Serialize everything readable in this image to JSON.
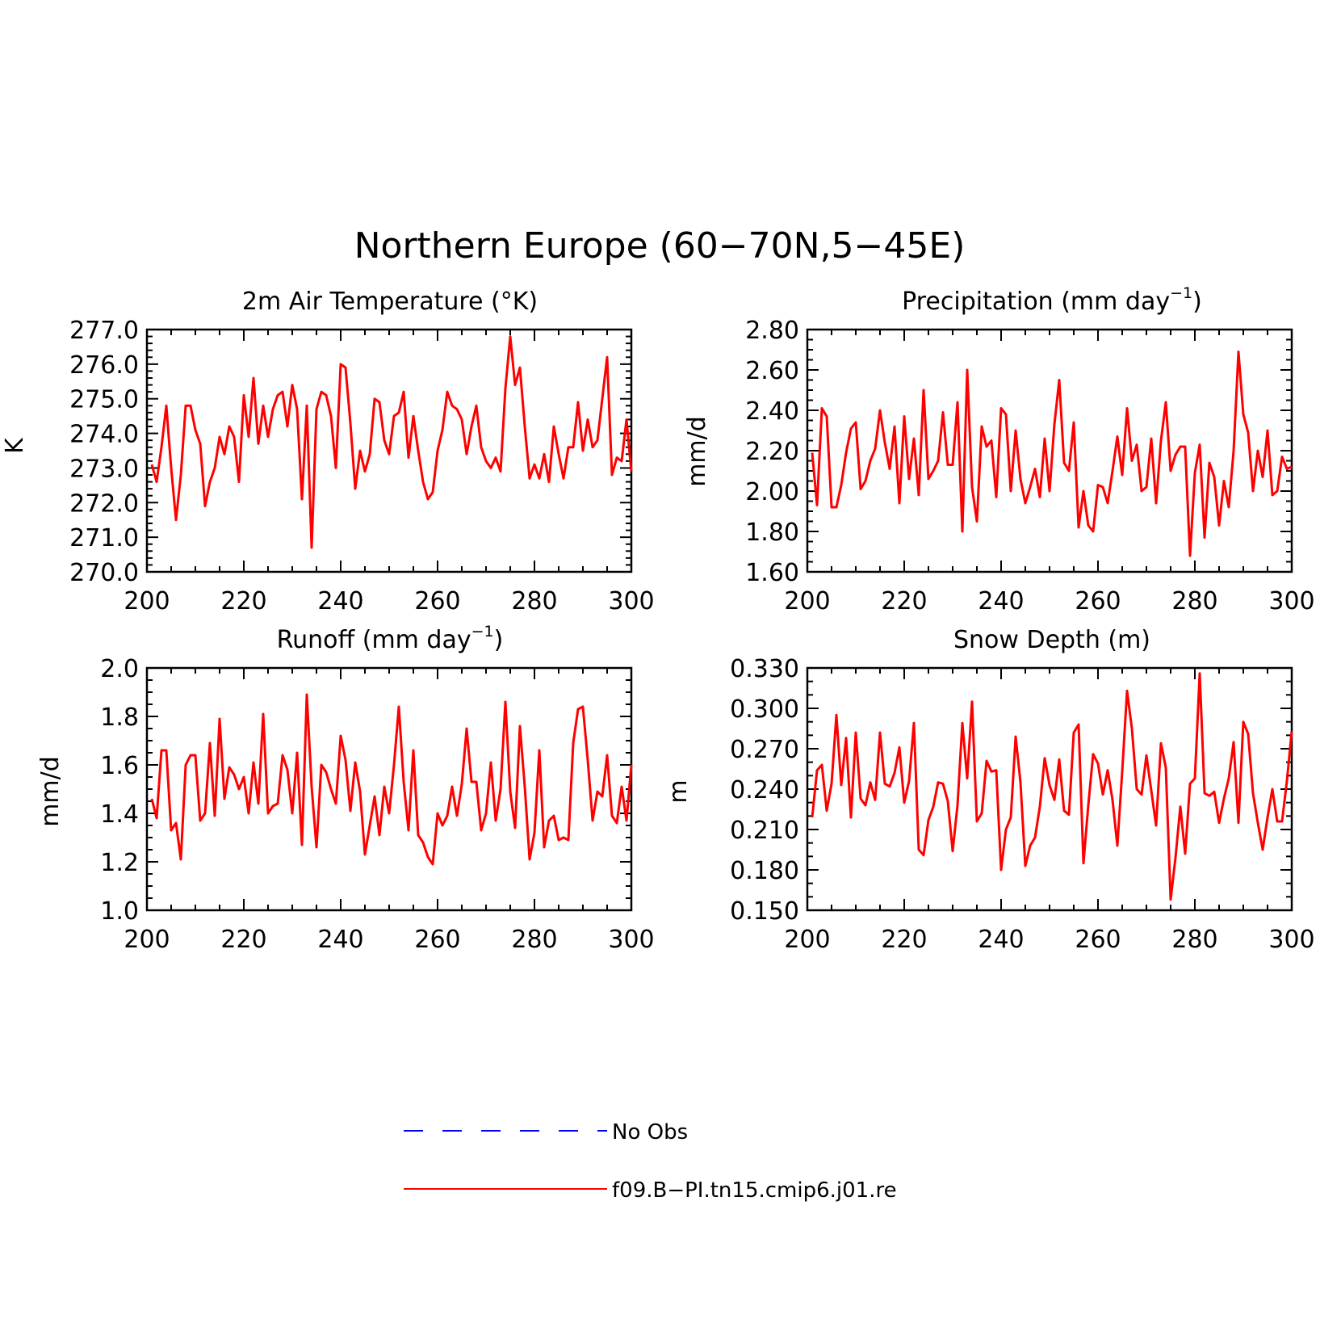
{
  "figure": {
    "title": "Northern Europe (60−70N,5−45E)",
    "colors": {
      "obs": "#0000ff",
      "model": "#ff0000",
      "axis": "#000000"
    }
  },
  "legend": {
    "items": [
      {
        "label": "No Obs",
        "style": "dashed",
        "color": "#0000ff"
      },
      {
        "label": "f09.B−PI.tn15.cmip6.j01.re",
        "style": "solid",
        "color": "#ff0000"
      }
    ]
  },
  "chart_data": [
    {
      "type": "line",
      "title": "2m Air Temperature (°K)",
      "title_sup": "",
      "ylabel": "K",
      "xlim": [
        200,
        300
      ],
      "ylim": [
        270,
        277
      ],
      "xticks": [
        200,
        220,
        240,
        260,
        280,
        300
      ],
      "xtick_labels": [
        "200",
        "220",
        "240",
        "260",
        "280",
        "300"
      ],
      "yticks": [
        270,
        271,
        272,
        273,
        274,
        275,
        276,
        277
      ],
      "ytick_labels": [
        "270.0",
        "271.0",
        "272.0",
        "273.0",
        "274.0",
        "275.0",
        "276.0",
        "277.0"
      ],
      "yminor": 4,
      "x": [
        201,
        202,
        203,
        204,
        205,
        206,
        207,
        208,
        209,
        210,
        211,
        212,
        213,
        214,
        215,
        216,
        217,
        218,
        219,
        220,
        221,
        222,
        223,
        224,
        225,
        226,
        227,
        228,
        229,
        230,
        231,
        232,
        233,
        234,
        235,
        236,
        237,
        238,
        239,
        240,
        241,
        242,
        243,
        244,
        245,
        246,
        247,
        248,
        249,
        250,
        251,
        252,
        253,
        254,
        255,
        256,
        257,
        258,
        259,
        260,
        261,
        262,
        263,
        264,
        265,
        266,
        267,
        268,
        269,
        270,
        271,
        272,
        273,
        274,
        275,
        276,
        277,
        278,
        279,
        280,
        281,
        282,
        283,
        284,
        285,
        286,
        287,
        288,
        289,
        290,
        291,
        292,
        293,
        294,
        295,
        296,
        297,
        298,
        299,
        300
      ],
      "series": [
        {
          "values": [
            273.1,
            272.6,
            273.6,
            274.8,
            273.0,
            271.5,
            272.8,
            274.8,
            274.8,
            274.1,
            273.7,
            271.9,
            272.6,
            273.0,
            273.9,
            273.4,
            274.2,
            273.9,
            272.6,
            275.1,
            273.9,
            275.6,
            273.7,
            274.8,
            273.9,
            274.7,
            275.1,
            275.2,
            274.2,
            275.4,
            274.7,
            272.1,
            274.8,
            270.7,
            274.7,
            275.2,
            275.1,
            274.5,
            273.0,
            276.0,
            275.9,
            274.3,
            272.4,
            273.5,
            272.9,
            273.4,
            275.0,
            274.9,
            273.8,
            273.4,
            274.5,
            274.6,
            275.2,
            273.3,
            274.5,
            273.5,
            272.6,
            272.1,
            272.3,
            273.5,
            274.1,
            275.2,
            274.8,
            274.7,
            274.4,
            273.4,
            274.2,
            274.8,
            273.6,
            273.2,
            273.0,
            273.3,
            272.9,
            275.3,
            276.8,
            275.4,
            275.9,
            274.2,
            272.7,
            273.1,
            272.7,
            273.4,
            272.6,
            274.2,
            273.4,
            272.7,
            273.6,
            273.6,
            274.9,
            273.5,
            274.4,
            273.6,
            273.8,
            275.0,
            276.2,
            272.8,
            273.3,
            273.2,
            274.4,
            272.9
          ]
        }
      ]
    },
    {
      "type": "line",
      "title": "Precipitation (mm day",
      "title_sup": "−1",
      "title_tail": ")",
      "ylabel": "mm/d",
      "xlim": [
        200,
        300
      ],
      "ylim": [
        1.6,
        2.8
      ],
      "xticks": [
        200,
        220,
        240,
        260,
        280,
        300
      ],
      "xtick_labels": [
        "200",
        "220",
        "240",
        "260",
        "280",
        "300"
      ],
      "yticks": [
        1.6,
        1.8,
        2.0,
        2.2,
        2.4,
        2.6,
        2.8
      ],
      "ytick_labels": [
        "1.60",
        "1.80",
        "2.00",
        "2.20",
        "2.40",
        "2.60",
        "2.80"
      ],
      "yminor": 3,
      "x": [
        201,
        202,
        203,
        204,
        205,
        206,
        207,
        208,
        209,
        210,
        211,
        212,
        213,
        214,
        215,
        216,
        217,
        218,
        219,
        220,
        221,
        222,
        223,
        224,
        225,
        226,
        227,
        228,
        229,
        230,
        231,
        232,
        233,
        234,
        235,
        236,
        237,
        238,
        239,
        240,
        241,
        242,
        243,
        244,
        245,
        246,
        247,
        248,
        249,
        250,
        251,
        252,
        253,
        254,
        255,
        256,
        257,
        258,
        259,
        260,
        261,
        262,
        263,
        264,
        265,
        266,
        267,
        268,
        269,
        270,
        271,
        272,
        273,
        274,
        275,
        276,
        277,
        278,
        279,
        280,
        281,
        282,
        283,
        284,
        285,
        286,
        287,
        288,
        289,
        290,
        291,
        292,
        293,
        294,
        295,
        296,
        297,
        298,
        299,
        300
      ],
      "series": [
        {
          "values": [
            2.19,
            1.93,
            2.41,
            2.37,
            1.92,
            1.92,
            2.03,
            2.19,
            2.31,
            2.34,
            2.01,
            2.05,
            2.15,
            2.21,
            2.4,
            2.24,
            2.11,
            2.32,
            1.94,
            2.37,
            2.06,
            2.26,
            1.98,
            2.5,
            2.06,
            2.1,
            2.15,
            2.39,
            2.13,
            2.13,
            2.44,
            1.8,
            2.6,
            2.02,
            1.85,
            2.32,
            2.22,
            2.25,
            1.97,
            2.41,
            2.38,
            2.0,
            2.3,
            2.06,
            1.94,
            2.02,
            2.11,
            1.97,
            2.26,
            2.0,
            2.33,
            2.55,
            2.14,
            2.1,
            2.34,
            1.82,
            2.0,
            1.83,
            1.8,
            2.03,
            2.02,
            1.94,
            2.1,
            2.27,
            2.08,
            2.41,
            2.15,
            2.23,
            2.0,
            2.02,
            2.26,
            1.94,
            2.25,
            2.44,
            2.1,
            2.18,
            2.22,
            2.22,
            1.68,
            2.09,
            2.23,
            1.77,
            2.14,
            2.07,
            1.83,
            2.05,
            1.92,
            2.2,
            2.69,
            2.38,
            2.29,
            2.0,
            2.2,
            2.07,
            2.3,
            1.98,
            2.0,
            2.17,
            2.11,
            2.12
          ]
        }
      ]
    },
    {
      "type": "line",
      "title": "Runoff (mm day",
      "title_sup": "−1",
      "title_tail": ")",
      "ylabel": "mm/d",
      "xlim": [
        200,
        300
      ],
      "ylim": [
        1.0,
        2.0
      ],
      "xticks": [
        200,
        220,
        240,
        260,
        280,
        300
      ],
      "xtick_labels": [
        "200",
        "220",
        "240",
        "260",
        "280",
        "300"
      ],
      "yticks": [
        1.0,
        1.2,
        1.4,
        1.6,
        1.8,
        2.0
      ],
      "ytick_labels": [
        "1.0",
        "1.2",
        "1.4",
        "1.6",
        "1.8",
        "2.0"
      ],
      "yminor": 3,
      "x": [
        201,
        202,
        203,
        204,
        205,
        206,
        207,
        208,
        209,
        210,
        211,
        212,
        213,
        214,
        215,
        216,
        217,
        218,
        219,
        220,
        221,
        222,
        223,
        224,
        225,
        226,
        227,
        228,
        229,
        230,
        231,
        232,
        233,
        234,
        235,
        236,
        237,
        238,
        239,
        240,
        241,
        242,
        243,
        244,
        245,
        246,
        247,
        248,
        249,
        250,
        251,
        252,
        253,
        254,
        255,
        256,
        257,
        258,
        259,
        260,
        261,
        262,
        263,
        264,
        265,
        266,
        267,
        268,
        269,
        270,
        271,
        272,
        273,
        274,
        275,
        276,
        277,
        278,
        279,
        280,
        281,
        282,
        283,
        284,
        285,
        286,
        287,
        288,
        289,
        290,
        291,
        292,
        293,
        294,
        295,
        296,
        297,
        298,
        299,
        300
      ],
      "series": [
        {
          "values": [
            1.46,
            1.38,
            1.66,
            1.66,
            1.33,
            1.36,
            1.21,
            1.6,
            1.64,
            1.64,
            1.37,
            1.4,
            1.69,
            1.39,
            1.79,
            1.46,
            1.59,
            1.56,
            1.5,
            1.55,
            1.4,
            1.61,
            1.44,
            1.81,
            1.4,
            1.43,
            1.44,
            1.64,
            1.58,
            1.4,
            1.65,
            1.27,
            1.89,
            1.51,
            1.26,
            1.6,
            1.57,
            1.5,
            1.44,
            1.72,
            1.62,
            1.41,
            1.61,
            1.49,
            1.23,
            1.35,
            1.47,
            1.31,
            1.51,
            1.4,
            1.6,
            1.84,
            1.53,
            1.33,
            1.66,
            1.31,
            1.28,
            1.22,
            1.19,
            1.4,
            1.35,
            1.39,
            1.51,
            1.39,
            1.52,
            1.75,
            1.53,
            1.53,
            1.33,
            1.4,
            1.61,
            1.37,
            1.5,
            1.86,
            1.49,
            1.34,
            1.76,
            1.51,
            1.21,
            1.32,
            1.66,
            1.26,
            1.37,
            1.39,
            1.29,
            1.3,
            1.29,
            1.69,
            1.83,
            1.84,
            1.62,
            1.37,
            1.49,
            1.47,
            1.64,
            1.39,
            1.36,
            1.51,
            1.37,
            1.6
          ]
        }
      ]
    },
    {
      "type": "line",
      "title": "Snow Depth (m)",
      "title_sup": "",
      "ylabel": "m",
      "xlim": [
        200,
        300
      ],
      "ylim": [
        0.15,
        0.33
      ],
      "xticks": [
        200,
        220,
        240,
        260,
        280,
        300
      ],
      "xtick_labels": [
        "200",
        "220",
        "240",
        "260",
        "280",
        "300"
      ],
      "yticks": [
        0.15,
        0.18,
        0.21,
        0.24,
        0.27,
        0.3,
        0.33
      ],
      "ytick_labels": [
        "0.150",
        "0.180",
        "0.210",
        "0.240",
        "0.270",
        "0.300",
        "0.330"
      ],
      "yminor": 2,
      "x": [
        201,
        202,
        203,
        204,
        205,
        206,
        207,
        208,
        209,
        210,
        211,
        212,
        213,
        214,
        215,
        216,
        217,
        218,
        219,
        220,
        221,
        222,
        223,
        224,
        225,
        226,
        227,
        228,
        229,
        230,
        231,
        232,
        233,
        234,
        235,
        236,
        237,
        238,
        239,
        240,
        241,
        242,
        243,
        244,
        245,
        246,
        247,
        248,
        249,
        250,
        251,
        252,
        253,
        254,
        255,
        256,
        257,
        258,
        259,
        260,
        261,
        262,
        263,
        264,
        265,
        266,
        267,
        268,
        269,
        270,
        271,
        272,
        273,
        274,
        275,
        276,
        277,
        278,
        279,
        280,
        281,
        282,
        283,
        284,
        285,
        286,
        287,
        288,
        289,
        290,
        291,
        292,
        293,
        294,
        295,
        296,
        297,
        298,
        299,
        300
      ],
      "series": [
        {
          "values": [
            0.219,
            0.254,
            0.258,
            0.224,
            0.244,
            0.295,
            0.243,
            0.278,
            0.219,
            0.282,
            0.233,
            0.228,
            0.245,
            0.232,
            0.282,
            0.244,
            0.242,
            0.252,
            0.271,
            0.23,
            0.246,
            0.289,
            0.195,
            0.191,
            0.217,
            0.227,
            0.245,
            0.244,
            0.231,
            0.194,
            0.228,
            0.289,
            0.248,
            0.305,
            0.216,
            0.222,
            0.261,
            0.253,
            0.254,
            0.18,
            0.21,
            0.219,
            0.279,
            0.245,
            0.183,
            0.198,
            0.204,
            0.227,
            0.263,
            0.243,
            0.232,
            0.262,
            0.224,
            0.221,
            0.282,
            0.288,
            0.185,
            0.228,
            0.266,
            0.259,
            0.236,
            0.254,
            0.232,
            0.198,
            0.253,
            0.313,
            0.285,
            0.24,
            0.236,
            0.265,
            0.239,
            0.213,
            0.274,
            0.256,
            0.158,
            0.189,
            0.227,
            0.192,
            0.244,
            0.248,
            0.326,
            0.237,
            0.235,
            0.238,
            0.215,
            0.233,
            0.248,
            0.275,
            0.215,
            0.29,
            0.281,
            0.237,
            0.215,
            0.195,
            0.219,
            0.24,
            0.216,
            0.216,
            0.246,
            0.283
          ]
        }
      ]
    }
  ]
}
